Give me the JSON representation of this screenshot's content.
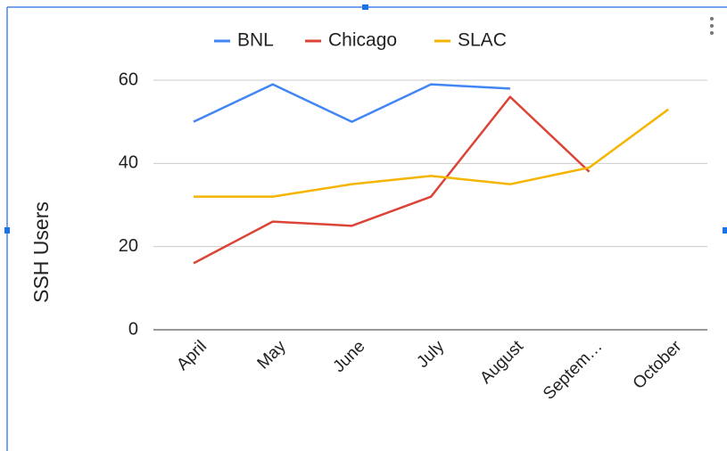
{
  "chart_data": {
    "type": "line",
    "categories": [
      "April",
      "May",
      "June",
      "July",
      "August",
      "Septem…",
      "October"
    ],
    "series": [
      {
        "name": "BNL",
        "color": "#4285f4",
        "values": [
          50,
          59,
          50,
          59,
          58,
          null,
          null
        ]
      },
      {
        "name": "Chicago",
        "color": "#db4437",
        "values": [
          16,
          26,
          25,
          32,
          56,
          38,
          null
        ]
      },
      {
        "name": "SLAC",
        "color": "#f4b400",
        "values": [
          32,
          32,
          35,
          37,
          35,
          39,
          53
        ]
      }
    ],
    "ylabel": "SSH Users",
    "ylim": [
      0,
      60
    ],
    "yticks": [
      0,
      20,
      40,
      60
    ],
    "grid": true,
    "legend": "top"
  }
}
